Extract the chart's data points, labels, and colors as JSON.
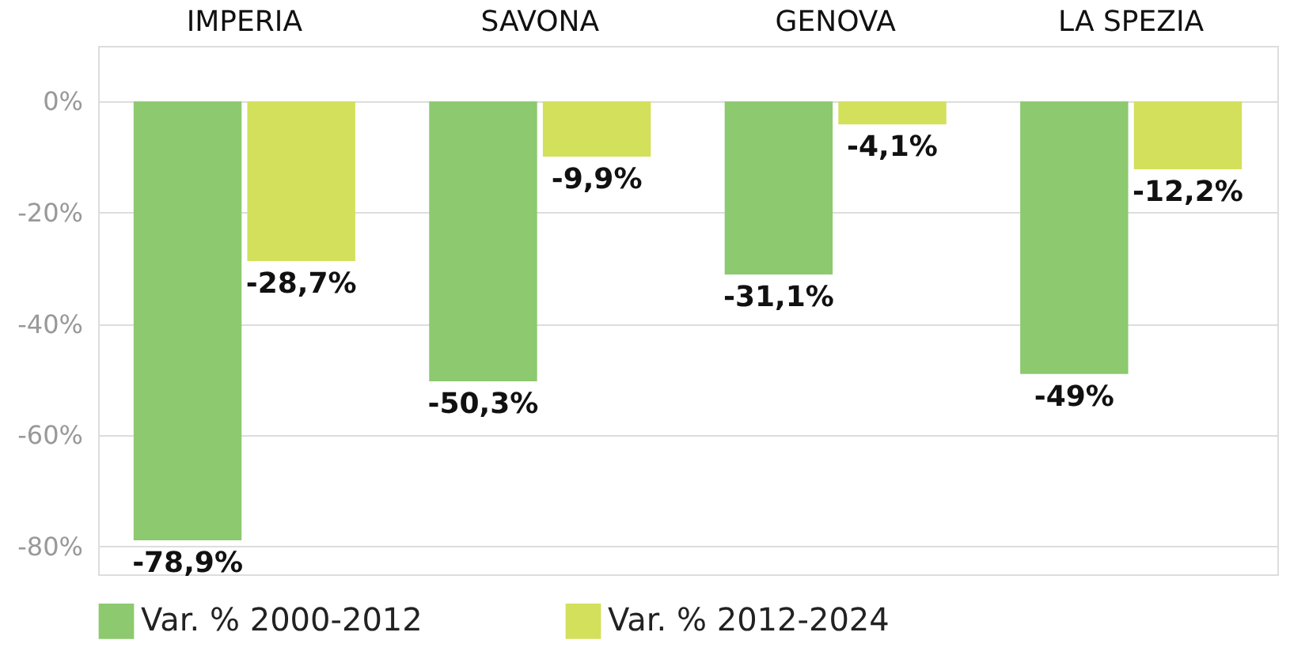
{
  "chart_data": {
    "type": "bar",
    "categories": [
      "IMPERIA",
      "SAVONA",
      "GENOVA",
      "LA SPEZIA"
    ],
    "series": [
      {
        "name": "Var. % 2000-2012",
        "color": "#8dc96f",
        "values": [
          -78.9,
          -50.3,
          -31.1,
          -49
        ],
        "value_labels": [
          "-78,9%",
          "-50,3%",
          "-31,1%",
          "-49%"
        ]
      },
      {
        "name": "Var. % 2012-2024",
        "color": "#d3e05c",
        "values": [
          -28.7,
          -9.9,
          -4.1,
          -12.2
        ],
        "value_labels": [
          "-28,7%",
          "-9,9%",
          "-4,1%",
          "-12,2%"
        ]
      }
    ],
    "ylim": [
      -85,
      10
    ],
    "yticks": [
      {
        "value": 0,
        "label": "0%"
      },
      {
        "value": -20,
        "label": "-20%"
      },
      {
        "value": -40,
        "label": "-40%"
      },
      {
        "value": -60,
        "label": "-60%"
      },
      {
        "value": -80,
        "label": "-80%"
      }
    ],
    "grid": "y",
    "legend": "bottom"
  }
}
